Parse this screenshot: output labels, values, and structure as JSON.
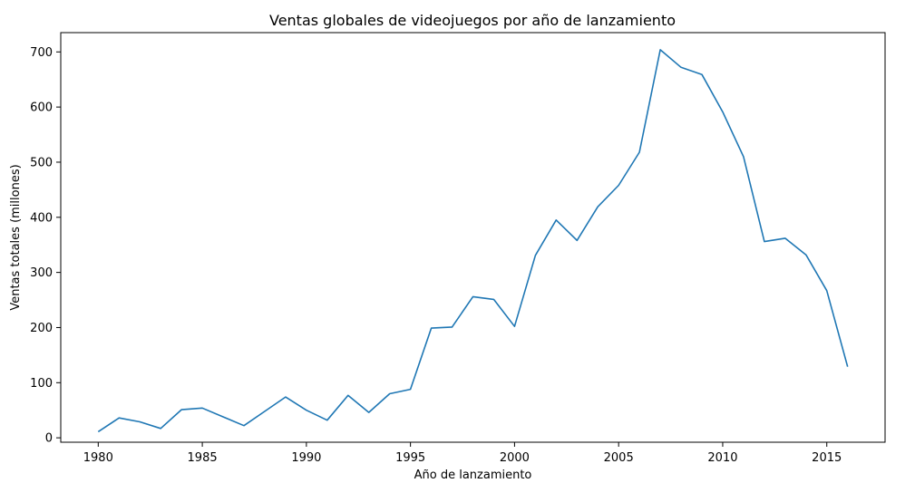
{
  "chart_data": {
    "type": "line",
    "title": "Ventas globales de videojuegos por año de lanzamiento",
    "xlabel": "Año de lanzamiento",
    "ylabel": "Ventas totales (millones)",
    "xlim": [
      1978.2,
      2017.8
    ],
    "ylim": [
      -8,
      735
    ],
    "x_ticks": [
      1980,
      1985,
      1990,
      1995,
      2000,
      2005,
      2010,
      2015
    ],
    "y_ticks": [
      0,
      100,
      200,
      300,
      400,
      500,
      600,
      700
    ],
    "grid": false,
    "series": [
      {
        "color": "#1f77b4",
        "x": [
          1980,
          1981,
          1982,
          1983,
          1984,
          1985,
          1986,
          1987,
          1988,
          1989,
          1990,
          1991,
          1992,
          1993,
          1994,
          1995,
          1996,
          1997,
          1998,
          1999,
          2000,
          2001,
          2002,
          2003,
          2004,
          2005,
          2006,
          2007,
          2008,
          2009,
          2010,
          2011,
          2012,
          2013,
          2014,
          2015,
          2016
        ],
        "y": [
          11,
          36,
          29,
          17,
          51,
          54,
          38,
          22,
          48,
          74,
          50,
          32,
          77,
          46,
          80,
          88,
          199,
          201,
          256,
          251,
          202,
          331,
          395,
          358,
          419,
          458,
          518,
          704,
          672,
          659,
          591,
          510,
          356,
          362,
          332,
          267,
          129
        ]
      }
    ]
  }
}
